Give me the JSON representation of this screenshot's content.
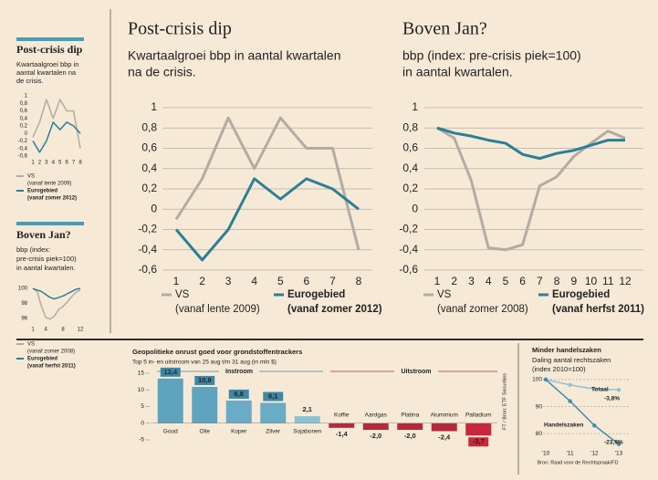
{
  "chart_data": [
    {
      "type": "line",
      "title": "Post-crisis dip",
      "subtitle": [
        "Kwartaalgroei bbp in",
        "aantal kwartalen na",
        "de crisis."
      ],
      "x": [
        1,
        2,
        3,
        4,
        5,
        6,
        7,
        8
      ],
      "xlim": [
        1,
        8
      ],
      "xticks": [
        1,
        2,
        3,
        4,
        5,
        6,
        7,
        8
      ],
      "ylim": [
        -0.6,
        1
      ],
      "yticks": [
        1,
        {
          "value": 0.8,
          "label": "0,8"
        },
        {
          "value": 0.6,
          "label": "0,6"
        },
        {
          "value": 0.4,
          "label": "0,4"
        },
        {
          "value": 0.2,
          "label": "0,2"
        },
        0,
        {
          "value": -0.2,
          "label": "-0,2"
        },
        {
          "value": -0.4,
          "label": "-0,4"
        },
        {
          "value": -0.6,
          "label": "-0,6"
        }
      ],
      "grid": false,
      "series": [
        {
          "name": "VS",
          "note": "(vanaf lente 2009)",
          "color": "#b3aca3",
          "values": [
            -0.1,
            0.3,
            0.9,
            0.4,
            0.9,
            0.6,
            0.6,
            -0.4
          ]
        },
        {
          "name": "Eurogebied",
          "note": "(vanaf zomer 2012)",
          "color": "#2b7f98",
          "values": [
            -0.2,
            -0.5,
            -0.2,
            0.3,
            0.1,
            0.3,
            0.2,
            0
          ]
        }
      ]
    },
    {
      "type": "line",
      "title": "Boven Jan?",
      "subtitle": [
        "bbp (index:",
        "pre-crisis piek=100)",
        "in aantal kwartalen."
      ],
      "x": [
        1,
        2,
        3,
        4,
        5,
        6,
        7,
        8,
        9,
        10,
        11,
        12
      ],
      "xlim": [
        1,
        12
      ],
      "xticks": [
        1,
        4,
        8,
        12
      ],
      "ylim": [
        95,
        101
      ],
      "yticks": [
        100,
        98,
        96
      ],
      "grid": false,
      "series": [
        {
          "name": "VS",
          "note": "(vanaf zomer 2008)",
          "color": "#b3aca3",
          "values": [
            100,
            99.6,
            97.6,
            96.1,
            95.9,
            96.3,
            97.2,
            97.6,
            98.2,
            98.9,
            99.5,
            99.8
          ]
        },
        {
          "name": "Eurogebied",
          "note": "(vanaf herfst 2011)",
          "color": "#2b7f98",
          "values": [
            100,
            99.8,
            99.6,
            99.2,
            98.8,
            98.6,
            98.8,
            99,
            99.3,
            99.6,
            99.9,
            100
          ]
        }
      ]
    },
    {
      "type": "line",
      "title": "Post-crisis dip",
      "subtitle": [
        "Kwartaalgroei bbp in aantal kwartalen",
        "na de crisis."
      ],
      "x": [
        1,
        2,
        3,
        4,
        5,
        6,
        7,
        8
      ],
      "xlim": [
        1,
        8
      ],
      "xticks": [
        1,
        2,
        3,
        4,
        5,
        6,
        7,
        8
      ],
      "ylim": [
        -0.6,
        1
      ],
      "yticks": [
        1,
        {
          "value": 0.8,
          "label": "0,8"
        },
        {
          "value": 0.6,
          "label": "0,6"
        },
        {
          "value": 0.4,
          "label": "0,4"
        },
        {
          "value": 0.2,
          "label": "0,2"
        },
        0,
        {
          "value": -0.2,
          "label": "-0,2"
        },
        {
          "value": -0.4,
          "label": "-0,4"
        },
        {
          "value": -0.6,
          "label": "-0,6"
        }
      ],
      "grid": true,
      "series": [
        {
          "name": "VS",
          "note": "(vanaf lente 2009)",
          "color": "#b3aca3",
          "values": [
            -0.1,
            0.3,
            0.9,
            0.4,
            0.9,
            0.6,
            0.6,
            -0.4
          ]
        },
        {
          "name": "Eurogebied",
          "note": "(vanaf zomer 2012)",
          "color": "#2b7f98",
          "values": [
            -0.2,
            -0.5,
            -0.2,
            0.3,
            0.1,
            0.3,
            0.2,
            0
          ]
        }
      ]
    },
    {
      "type": "line",
      "title": "Boven Jan?",
      "subtitle": [
        "bbp (index: pre-crisis piek=100)",
        "in aantal kwartalen."
      ],
      "x": [
        1,
        2,
        3,
        4,
        5,
        6,
        7,
        8,
        9,
        10,
        11,
        12
      ],
      "xlim": [
        1,
        12
      ],
      "xticks": [
        1,
        2,
        3,
        4,
        5,
        6,
        7,
        8,
        9,
        10,
        11,
        12
      ],
      "ylim": [
        -0.6,
        1
      ],
      "yticks": [
        1,
        {
          "value": 0.8,
          "label": "0,8"
        },
        {
          "value": 0.6,
          "label": "0,6"
        },
        {
          "value": 0.4,
          "label": "0,4"
        },
        {
          "value": 0.2,
          "label": "0,2"
        },
        0,
        {
          "value": -0.2,
          "label": "-0,2"
        },
        {
          "value": -0.4,
          "label": "-0,4"
        },
        {
          "value": -0.6,
          "label": "-0,6"
        }
      ],
      "grid": true,
      "series": [
        {
          "name": "VS",
          "note": "(vanaf zomer 2008)",
          "color": "#b3aca3",
          "values": [
            0.8,
            0.7,
            0.28,
            -0.38,
            -0.4,
            -0.35,
            0.23,
            0.32,
            0.52,
            0.65,
            0.77,
            0.7
          ]
        },
        {
          "name": "Eurogebied",
          "note": "(vanaf herfst 2011)",
          "color": "#2b7f98",
          "values": [
            0.8,
            0.75,
            0.72,
            0.68,
            0.65,
            0.54,
            0.5,
            0.55,
            0.58,
            0.63,
            0.68,
            0.68
          ]
        }
      ]
    },
    {
      "type": "bar",
      "title": "Geopolitieke onrust goed voor grondstoffentrackers",
      "subtitle": [
        "Top 5 in- en uitstroom van 25 aug t/m 31 aug (in mln $)"
      ],
      "categories": [
        "Goud",
        "Olie",
        "Koper",
        "Zilver",
        "Sojabonen",
        "Koffie",
        "Aardgas",
        "Platina",
        "Aluminium",
        "Palladium"
      ],
      "values": [
        13.4,
        10.9,
        6.8,
        6.1,
        2.1,
        -1.4,
        -2.0,
        -2.0,
        -2.4,
        -3.7
      ],
      "value_labels": [
        "13,4",
        "10,9",
        "6,8",
        "6,1",
        "2,1",
        "-1,4",
        "-2,0",
        "-2,0",
        "-2,4",
        "-3,7"
      ],
      "colors": [
        "#5fa3bf",
        "#5fa3bf",
        "#6aabc5",
        "#6aabc5",
        "#8cc0d3",
        "#b52a3a",
        "#b52a3a",
        "#b52a3a",
        "#b52a3a",
        "#c8283c"
      ],
      "ylim": [
        -5,
        15
      ],
      "yticks": [
        15,
        10,
        5,
        0,
        -5
      ],
      "annotations": [
        "Instroom",
        "Uitstroom"
      ],
      "source": "FT / Bron: ETF Securities"
    },
    {
      "type": "line",
      "title": "Minder handelszaken",
      "subtitle": [
        "Daling aantal rechtszaken",
        "(index 2010=100)"
      ],
      "x": [
        2010,
        2011,
        2012,
        2013
      ],
      "xlim": [
        2010,
        2013
      ],
      "xticks": [
        {
          "value": 2010,
          "label": "'10"
        },
        {
          "value": 2011,
          "label": "'11"
        },
        {
          "value": 2012,
          "label": "'12"
        },
        {
          "value": 2013,
          "label": "'13"
        }
      ],
      "ylim": [
        76,
        102
      ],
      "yticks": [
        100,
        90,
        80
      ],
      "grid": true,
      "series": [
        {
          "name": "Totaal",
          "change_label": "-3,8%",
          "color": "#8fc3d6",
          "values": [
            100,
            98,
            96.5,
            96.2
          ]
        },
        {
          "name": "Handelszaken",
          "change_label": "-23,9%",
          "color": "#3b8fb0",
          "values": [
            100,
            92,
            83,
            76.1
          ]
        }
      ],
      "source": "Bron: Raad voor de Rechtspraak/FD"
    }
  ]
}
